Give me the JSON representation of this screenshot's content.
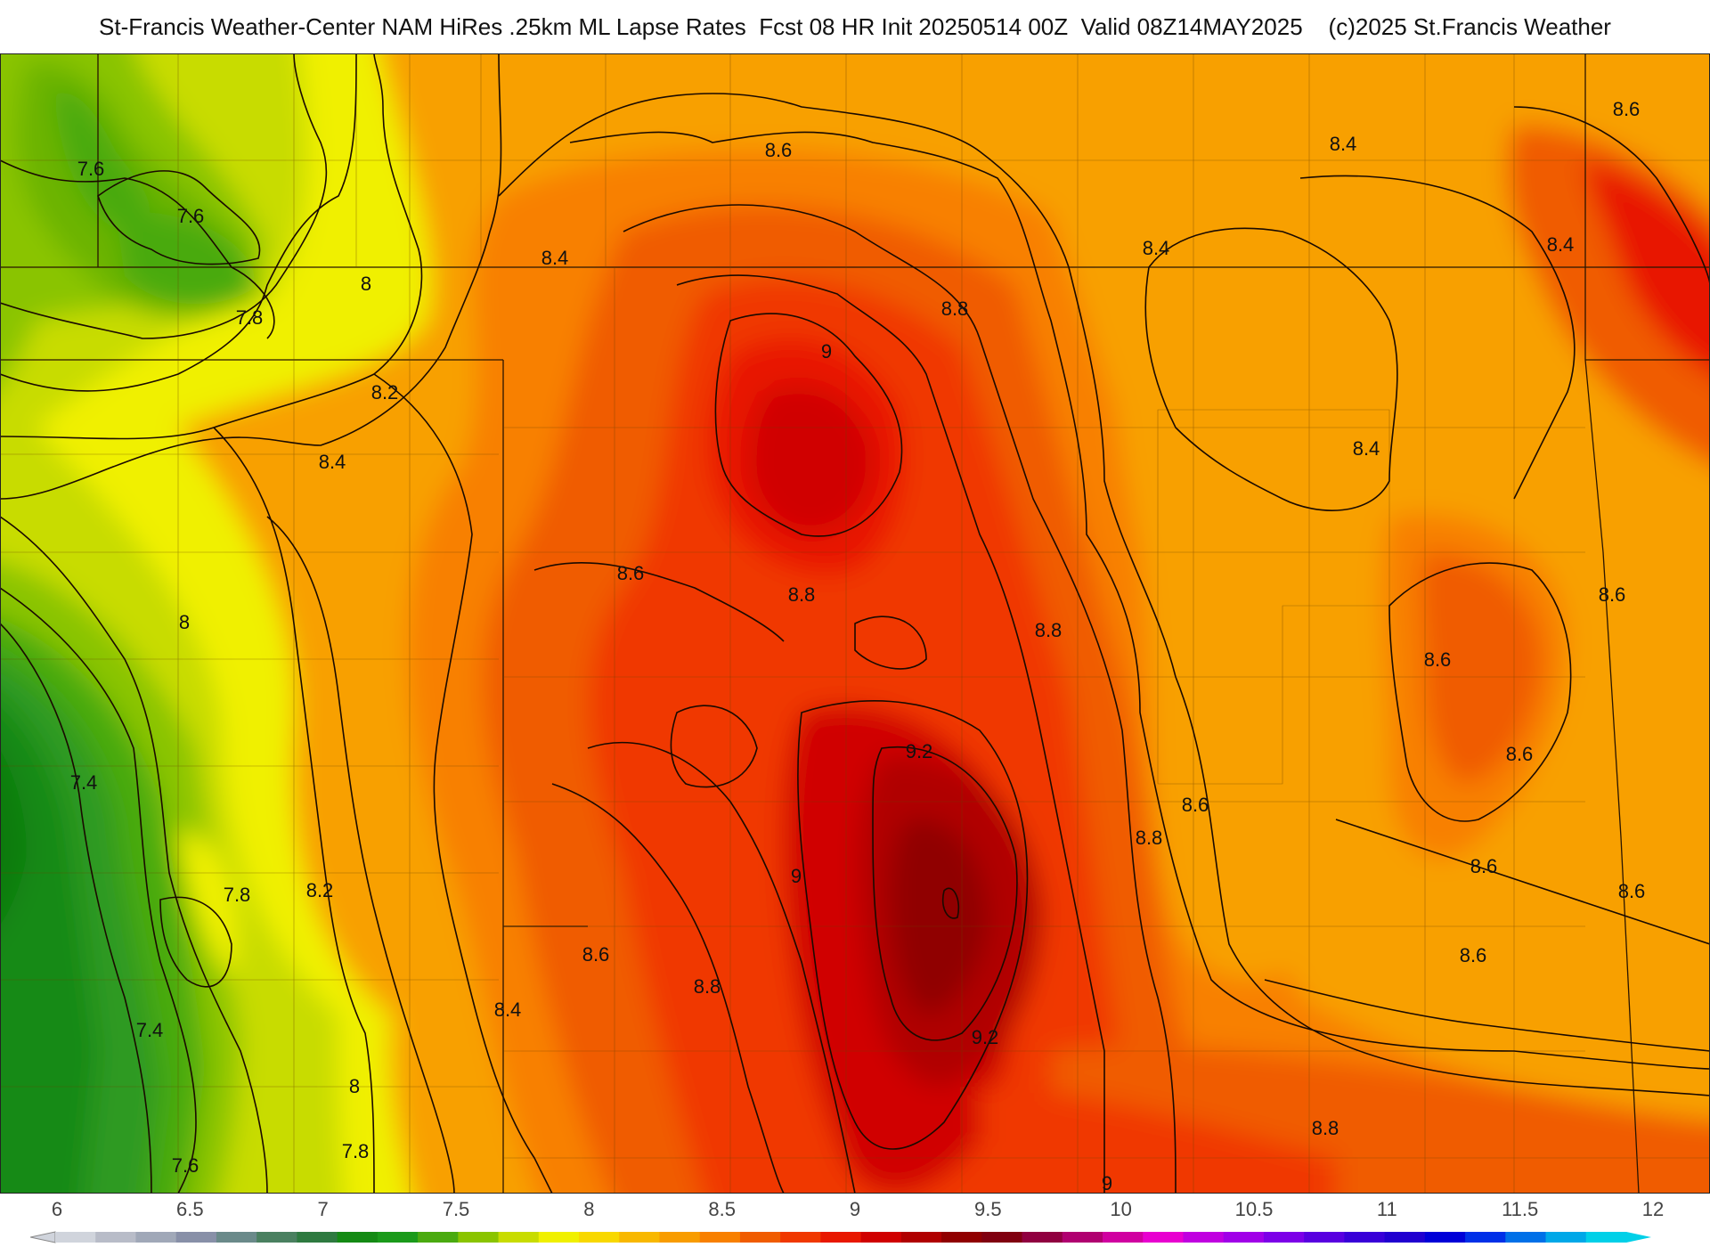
{
  "title": "St-Francis Weather-Center NAM HiRes .25km ML Lapse Rates  Fcst 08 HR Init 20250514 00Z  Valid 08Z14MAY2025    (c)2025 St.Francis Weather",
  "colorbar": {
    "ticks": [
      "6",
      "6.5",
      "7",
      "7.5",
      "8",
      "8.5",
      "9",
      "9.5",
      "10",
      "10.5",
      "11",
      "11.5",
      "12"
    ],
    "min": 6,
    "max": 12,
    "colors": [
      "#d0d4dc",
      "#b8bcc8",
      "#a0a8b8",
      "#8890a8",
      "#6a8a8a",
      "#4a8060",
      "#2e7a40",
      "#148a14",
      "#1a9a1a",
      "#4aaa10",
      "#8ac400",
      "#c8dc00",
      "#f0f000",
      "#f8d800",
      "#f8b800",
      "#f89c00",
      "#f88000",
      "#f05c00",
      "#f03800",
      "#e81800",
      "#d00000",
      "#b00000",
      "#900000",
      "#800010",
      "#900040",
      "#b00070",
      "#d000a0",
      "#e800d0",
      "#c000e0",
      "#a000e8",
      "#7c00e8",
      "#5800e0",
      "#3800d8",
      "#2000d0",
      "#0000d8",
      "#0030e8",
      "#0070e8",
      "#00a8e8",
      "#00d0e8"
    ]
  },
  "contour_labels": [
    "8.6",
    "7.6",
    "7.6",
    "8.4",
    "8.6",
    "8.4",
    "8.4",
    "8.4",
    "8",
    "7.8",
    "8.8",
    "9",
    "8.2",
    "8.4",
    "8.4",
    "8.6",
    "8.8",
    "8.8",
    "8",
    "8.6",
    "8.6",
    "8.6",
    "7.4",
    "9.2",
    "8.6",
    "8.8",
    "8.6",
    "9",
    "7.8",
    "8.2",
    "8.6",
    "8.6",
    "8.6",
    "8.8",
    "7.4",
    "9.2",
    "8.4",
    "8",
    "8.8",
    "7.6",
    "7.8",
    "9"
  ]
}
